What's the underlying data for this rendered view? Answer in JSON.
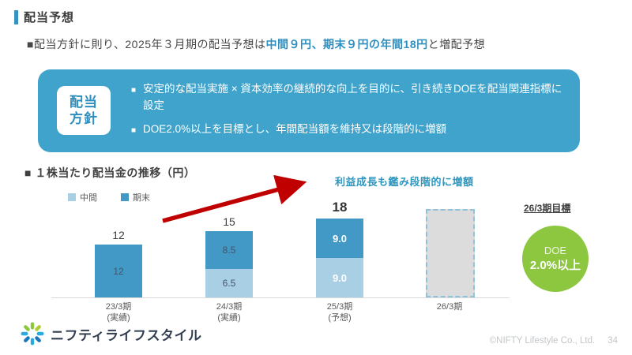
{
  "page": {
    "title": "配当予想",
    "subtitle": {
      "prefix": "■配当方針に則り、2025年３月期の配当予想は",
      "highlight": "中間９円、期末９円の年間18円",
      "suffix": "と増配予想"
    }
  },
  "policy_box": {
    "label_line1": "配当",
    "label_line2": "方針",
    "bullet_marker": "■",
    "bullet1": "安定的な配当実施 × 資本効率の継続的な向上を目的に、引き続きDOEを配当関連指標に設定",
    "bullet2": "DOE2.0%以上を目標とし、年間配当額を維持又は段階的に増額",
    "box_color": "#3fa3cb"
  },
  "chart_section": {
    "heading": "■ １株当たり配当金の推移（円）",
    "annotation": "利益成長も鑑み段階的に増額",
    "arrow_color": "#c00000",
    "target_label": "26/3期目標",
    "target_circle": {
      "line1": "DOE",
      "line2": "2.0%以上",
      "color": "#8dc63f"
    }
  },
  "chart_data": {
    "type": "bar",
    "stacked": true,
    "title": "１株当たり配当金の推移（円）",
    "unit": "円",
    "legend_position": "top-left",
    "series": [
      {
        "name": "中間",
        "color": "#a9cfe5"
      },
      {
        "name": "期末",
        "color": "#4299c6"
      }
    ],
    "bars": [
      {
        "category": "23/3期",
        "sub": "(実績)",
        "total": "12",
        "segments": [
          {
            "series": "期末",
            "value": 12,
            "label": "12",
            "label_color": "dark"
          }
        ]
      },
      {
        "category": "24/3期",
        "sub": "(実績)",
        "total": "15",
        "segments": [
          {
            "series": "中間",
            "value": 6.5,
            "label": "6.5",
            "label_color": "dark"
          },
          {
            "series": "期末",
            "value": 8.5,
            "label": "8.5",
            "label_color": "dark"
          }
        ]
      },
      {
        "category": "25/3期",
        "sub": "(予想)",
        "total": "18",
        "emphasis": true,
        "segments": [
          {
            "series": "中間",
            "value": 9.0,
            "label": "9.0",
            "label_color": "white"
          },
          {
            "series": "期末",
            "value": 9.0,
            "label": "9.0",
            "label_color": "white"
          }
        ]
      },
      {
        "category": "26/3期",
        "sub": "",
        "placeholder": true,
        "placeholder_value": 20
      }
    ]
  },
  "footer": {
    "logo_text": "ニフティライフスタイル",
    "copyright": "©NIFTY Lifestyle Co., Ltd.",
    "page_number": "34"
  }
}
